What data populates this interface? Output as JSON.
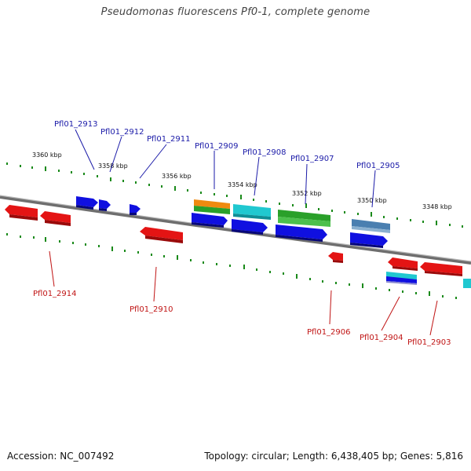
{
  "title": "Pseudomonas fluorescens Pf0-1, complete genome",
  "footer": {
    "accession": "Accession: NC_007492",
    "summary": "Topology: circular; Length: 6,438,405 bp; Genes: 5,816"
  },
  "ticks": [
    "3360 kbp",
    "3358 kbp",
    "3356 kbp",
    "3354 kbp",
    "3352 kbp",
    "3350 kbp",
    "3348 kbp"
  ],
  "labels_forward": [
    "Pfl01_2913",
    "Pfl01_2912",
    "Pfl01_2911",
    "Pfl01_2909",
    "Pfl01_2908",
    "Pfl01_2907",
    "Pfl01_2905"
  ],
  "labels_reverse": [
    "Pfl01_2914",
    "Pfl01_2910",
    "Pfl01_2906",
    "Pfl01_2904",
    "Pfl01_2903"
  ],
  "colors": {
    "forward_gene": "#1010e0",
    "reverse_gene": "#e41414",
    "backbone": "#8a8a8a",
    "tick": "#1a8a1a",
    "orange": "#f08a10",
    "green": "#2aa02a",
    "cyan": "#20c8d0",
    "steelblue": "#4a7fb0"
  }
}
